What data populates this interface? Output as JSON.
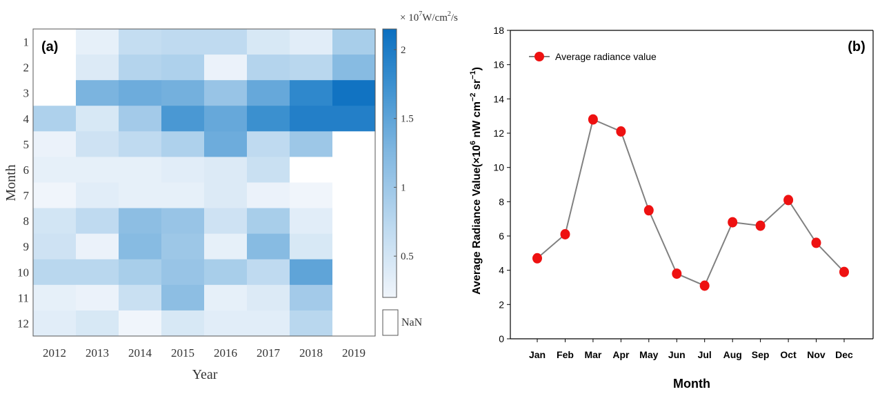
{
  "chart_data": [
    {
      "type": "heatmap",
      "panel_label": "(a)",
      "xlabel": "Year",
      "ylabel": "Month",
      "x_categories": [
        "2012",
        "2013",
        "2014",
        "2015",
        "2016",
        "2017",
        "2018",
        "2019"
      ],
      "y_categories": [
        "1",
        "2",
        "3",
        "4",
        "5",
        "6",
        "7",
        "8",
        "9",
        "10",
        "11",
        "12"
      ],
      "values": [
        [
          null,
          0.3,
          0.65,
          0.7,
          0.7,
          0.45,
          0.35,
          0.9
        ],
        [
          null,
          0.4,
          0.8,
          0.85,
          0.25,
          0.8,
          0.75,
          1.2
        ],
        [
          null,
          1.3,
          1.4,
          1.35,
          1.05,
          1.45,
          1.85,
          2.1
        ],
        [
          0.85,
          0.45,
          0.95,
          1.65,
          1.45,
          1.75,
          1.95,
          1.95
        ],
        [
          0.25,
          0.55,
          0.7,
          0.85,
          1.4,
          0.7,
          1.0,
          null
        ],
        [
          0.3,
          0.3,
          0.3,
          0.35,
          0.4,
          0.6,
          null,
          null
        ],
        [
          0.2,
          0.35,
          0.3,
          0.3,
          0.4,
          0.25,
          0.2,
          null
        ],
        [
          0.5,
          0.7,
          1.15,
          1.05,
          0.55,
          0.9,
          0.35,
          null
        ],
        [
          0.55,
          0.25,
          1.2,
          1.0,
          0.3,
          1.2,
          0.45,
          null
        ],
        [
          0.75,
          0.75,
          0.9,
          1.05,
          0.9,
          0.7,
          1.5,
          null
        ],
        [
          0.3,
          0.25,
          0.6,
          1.15,
          0.3,
          0.4,
          0.95,
          null
        ],
        [
          0.35,
          0.45,
          0.15,
          0.45,
          0.35,
          0.35,
          0.75,
          null
        ]
      ],
      "colorbar": {
        "unit_prefix": "× 10",
        "unit_exp": "7",
        "unit_main": "W/cm",
        "unit_sq": "2",
        "unit_tail": "/s",
        "ticks": [
          {
            "label": "0.5",
            "value": 0.5
          },
          {
            "label": "1",
            "value": 1.0
          },
          {
            "label": "1.5",
            "value": 1.5
          },
          {
            "label": "2",
            "value": 2.0
          }
        ],
        "range": [
          0.2,
          2.15
        ],
        "nan_label": "NaN"
      }
    },
    {
      "type": "line",
      "panel_label": "(b)",
      "xlabel": "Month",
      "ylabel_main": "Average Radiance Value(×10",
      "ylabel_exp1": "6",
      "ylabel_mid": " nW cm",
      "ylabel_exp2": "−2",
      "ylabel_mid2": " sr",
      "ylabel_exp3": "−1",
      "ylabel_end": ")",
      "categories": [
        "Jan",
        "Feb",
        "Mar",
        "Apr",
        "May",
        "Jun",
        "Jul",
        "Aug",
        "Sep",
        "Oct",
        "Nov",
        "Dec"
      ],
      "series": [
        {
          "name": "Average radiance value",
          "values": [
            4.7,
            6.1,
            12.8,
            12.1,
            7.5,
            3.8,
            3.1,
            6.8,
            6.6,
            8.1,
            5.6,
            3.9
          ]
        }
      ],
      "ylim": [
        0,
        18
      ],
      "yticks": [
        "0",
        "2",
        "4",
        "6",
        "8",
        "10",
        "12",
        "14",
        "16",
        "18"
      ]
    }
  ],
  "colors": {
    "marker": "#ee1111",
    "line": "#808080",
    "nan_cell": "#ffffff"
  }
}
